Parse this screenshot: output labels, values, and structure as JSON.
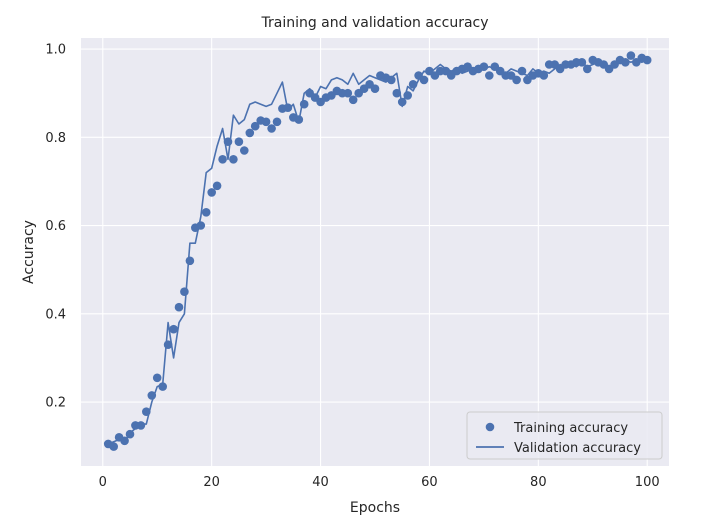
{
  "chart_data": {
    "type": "line",
    "title": "Training and validation accuracy",
    "xlabel": "Epochs",
    "ylabel": "Accuracy",
    "xlim": [
      -4,
      104
    ],
    "ylim": [
      0.055,
      1.025
    ],
    "x_ticks": [
      0,
      20,
      40,
      60,
      80,
      100
    ],
    "y_ticks": [
      0.2,
      0.4,
      0.6,
      0.8,
      1.0
    ],
    "y_tick_labels": [
      "0.2",
      "0.4",
      "0.6",
      "0.8",
      "1.0"
    ],
    "grid": true,
    "legend_position": "bottom-right",
    "colors": {
      "background": "#EAEAF2",
      "grid": "#FFFFFF",
      "series": "#4C72B0"
    },
    "x": [
      1,
      2,
      3,
      4,
      5,
      6,
      7,
      8,
      9,
      10,
      11,
      12,
      13,
      14,
      15,
      16,
      17,
      18,
      19,
      20,
      21,
      22,
      23,
      24,
      25,
      26,
      27,
      28,
      29,
      30,
      31,
      32,
      33,
      34,
      35,
      36,
      37,
      38,
      39,
      40,
      41,
      42,
      43,
      44,
      45,
      46,
      47,
      48,
      49,
      50,
      51,
      52,
      53,
      54,
      55,
      56,
      57,
      58,
      59,
      60,
      61,
      62,
      63,
      64,
      65,
      66,
      67,
      68,
      69,
      70,
      71,
      72,
      73,
      74,
      75,
      76,
      77,
      78,
      79,
      80,
      81,
      82,
      83,
      84,
      85,
      86,
      87,
      88,
      89,
      90,
      91,
      92,
      93,
      94,
      95,
      96,
      97,
      98,
      99,
      100
    ],
    "series": [
      {
        "name": "Training accuracy",
        "style": "markers",
        "values": [
          0.105,
          0.099,
          0.12,
          0.112,
          0.127,
          0.147,
          0.147,
          0.178,
          0.215,
          0.255,
          0.235,
          0.33,
          0.365,
          0.415,
          0.45,
          0.52,
          0.595,
          0.6,
          0.63,
          0.675,
          0.69,
          0.75,
          0.79,
          0.75,
          0.79,
          0.77,
          0.81,
          0.825,
          0.838,
          0.835,
          0.82,
          0.835,
          0.865,
          0.867,
          0.845,
          0.84,
          0.875,
          0.9,
          0.89,
          0.88,
          0.89,
          0.895,
          0.905,
          0.9,
          0.9,
          0.885,
          0.9,
          0.91,
          0.92,
          0.91,
          0.94,
          0.935,
          0.93,
          0.9,
          0.88,
          0.895,
          0.92,
          0.94,
          0.93,
          0.95,
          0.94,
          0.95,
          0.95,
          0.94,
          0.95,
          0.955,
          0.96,
          0.95,
          0.955,
          0.96,
          0.94,
          0.96,
          0.95,
          0.94,
          0.94,
          0.93,
          0.95,
          0.93,
          0.94,
          0.945,
          0.94,
          0.965,
          0.965,
          0.955,
          0.965,
          0.965,
          0.97,
          0.97,
          0.955,
          0.975,
          0.97,
          0.965,
          0.955,
          0.965,
          0.975,
          0.97,
          0.985,
          0.97,
          0.98,
          0.975
        ]
      },
      {
        "name": "Validation accuracy",
        "style": "line",
        "values": [
          0.105,
          0.11,
          0.115,
          0.11,
          0.13,
          0.14,
          0.15,
          0.15,
          0.2,
          0.235,
          0.24,
          0.38,
          0.3,
          0.38,
          0.4,
          0.56,
          0.56,
          0.62,
          0.72,
          0.73,
          0.78,
          0.82,
          0.75,
          0.85,
          0.83,
          0.84,
          0.875,
          0.88,
          0.875,
          0.87,
          0.875,
          0.9,
          0.925,
          0.86,
          0.875,
          0.835,
          0.9,
          0.91,
          0.89,
          0.915,
          0.91,
          0.93,
          0.935,
          0.93,
          0.92,
          0.945,
          0.92,
          0.93,
          0.94,
          0.935,
          0.93,
          0.925,
          0.935,
          0.945,
          0.87,
          0.915,
          0.905,
          0.93,
          0.95,
          0.945,
          0.955,
          0.965,
          0.955,
          0.95,
          0.955,
          0.945,
          0.95,
          0.955,
          0.96,
          0.955,
          0.96,
          0.955,
          0.95,
          0.945,
          0.955,
          0.95,
          0.945,
          0.94,
          0.955,
          0.945,
          0.95,
          0.945,
          0.955,
          0.965,
          0.96,
          0.965,
          0.96,
          0.97,
          0.96,
          0.965,
          0.97,
          0.965,
          0.96,
          0.965,
          0.97,
          0.975,
          0.97,
          0.975,
          0.97,
          0.975
        ]
      }
    ]
  }
}
